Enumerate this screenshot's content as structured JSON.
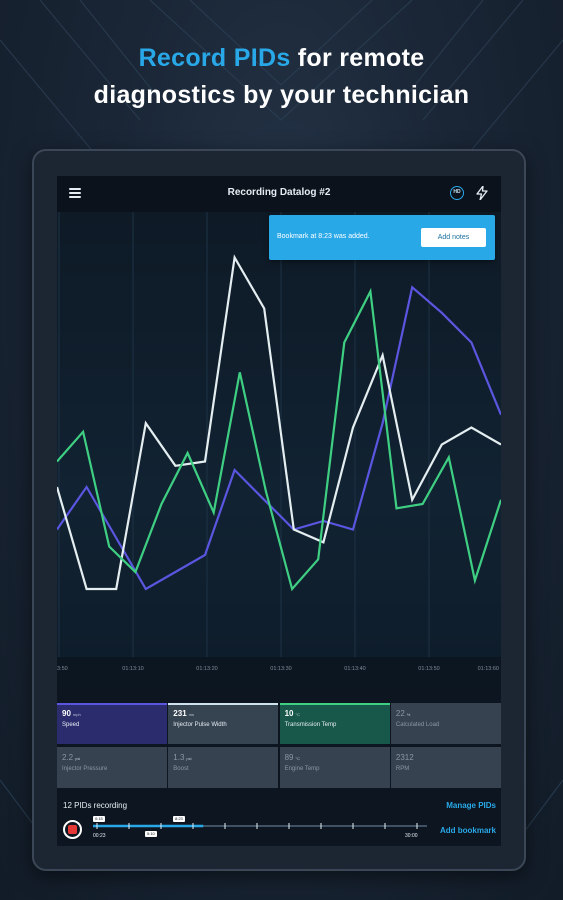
{
  "headline": {
    "accent": "Record PIDs",
    "rest_line1": " for remote",
    "line2": "diagnostics by your technician"
  },
  "appbar": {
    "title": "Recording Datalog #2",
    "menu_icon": "hamburger-menu-icon",
    "obd_icon_label": "HD",
    "bolt_icon": "lightning-bolt-icon"
  },
  "toast": {
    "message": "Bookmark at 8:23 was added.",
    "button_label": "Add notes"
  },
  "chart_data": {
    "type": "line",
    "x_tick_labels": [
      "3:50",
      "01:13:10",
      "01:13:20",
      "01:13:30",
      "01:13:40",
      "01:13:50",
      "01:13:60"
    ],
    "grid": true,
    "ylim": [
      0,
      100
    ],
    "series": [
      {
        "color": "#5b56e0",
        "values": [
          30,
          40,
          28,
          16,
          20,
          24,
          44,
          37,
          30,
          32,
          30,
          55,
          87,
          81,
          74,
          57
        ]
      },
      {
        "color": "#e4eef0",
        "values": [
          40,
          16,
          16,
          55,
          45,
          46,
          94,
          82,
          30,
          27,
          54,
          71,
          37,
          50,
          54,
          50
        ]
      },
      {
        "color": "#3fcf83",
        "values": [
          46,
          53,
          26,
          20,
          36,
          48,
          34,
          67,
          39,
          16,
          23,
          74,
          86,
          35,
          36,
          47,
          18,
          37
        ]
      }
    ]
  },
  "pid_cards": [
    {
      "value": "90",
      "unit": "mph",
      "name": "Speed",
      "bar": "#5b56e0",
      "bg": "#2a2c6e",
      "dim": false
    },
    {
      "value": "231",
      "unit": "ms",
      "name": "Injector Pulse Width",
      "bar": "#cfe3ef",
      "bg": "#364452",
      "dim": false
    },
    {
      "value": "10",
      "unit": "°C",
      "name": "Transmission Temp",
      "bar": "#3fcf83",
      "bg": "#17584a",
      "dim": false
    },
    {
      "value": "22",
      "unit": "%",
      "name": "Calculated Load",
      "bar": "",
      "bg": "#364250",
      "dim": true
    },
    {
      "value": "2.2",
      "unit": "psi",
      "name": "Injector Pressure",
      "bar": "",
      "bg": "#364250",
      "dim": true
    },
    {
      "value": "1.3",
      "unit": "psi",
      "name": "Boost",
      "bar": "",
      "bg": "#364250",
      "dim": true
    },
    {
      "value": "89",
      "unit": "°C",
      "name": "Engine Temp",
      "bar": "",
      "bg": "#364250",
      "dim": true
    },
    {
      "value": "2312",
      "unit": "",
      "name": "RPM",
      "bar": "",
      "bg": "#364250",
      "dim": true
    }
  ],
  "bottom": {
    "pids_recording": "12 PIDs recording",
    "manage_label": "Manage PIDs",
    "add_bookmark_label": "Add bookmark",
    "record_icon": "record-stop-icon",
    "timeline": {
      "start": "00:23",
      "end": "30:00",
      "tag1": "0:15",
      "tag2": "8:23",
      "tag3": "5:10",
      "progress": 0.33
    }
  }
}
